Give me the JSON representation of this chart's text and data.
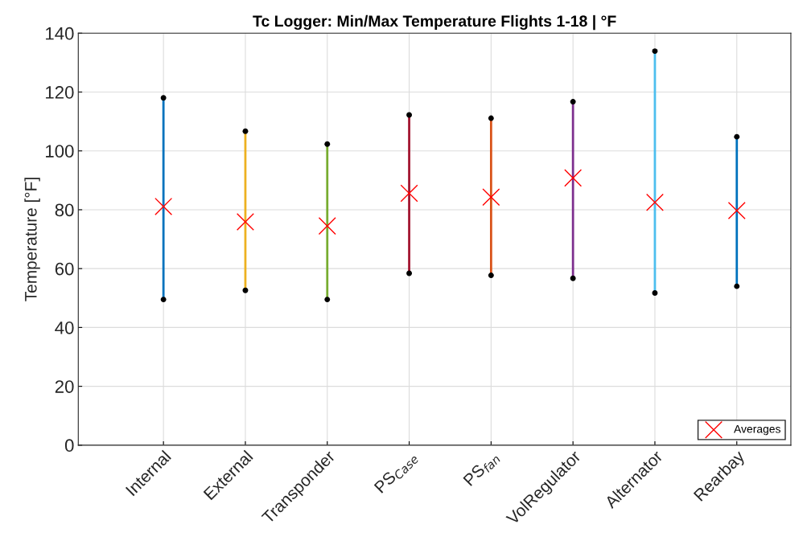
{
  "chart_data": {
    "type": "line",
    "title": "Tc Logger: Min/Max Temperature Flights 1-18 | °F",
    "ylabel": "Temperature [°F]",
    "categories": [
      "Internal",
      "External",
      "Transponder",
      "PS$_{Case}$",
      "PS$_{fan}$",
      "VolRegulator",
      "Alternator",
      "Rearbay"
    ],
    "series": [
      {
        "x": [
          "Internal",
          "Internal"
        ],
        "values": [
          49.5,
          118.0
        ],
        "color": "#0072bd"
      },
      {
        "x": [
          "External",
          "External"
        ],
        "values": [
          52.6,
          106.7
        ],
        "color": "#edb120"
      },
      {
        "x": [
          "Transponder",
          "Transponder"
        ],
        "values": [
          49.5,
          102.3
        ],
        "color": "#77ac30"
      },
      {
        "x": [
          "PS$_{Case}$",
          "PS$_{Case}$"
        ],
        "values": [
          58.4,
          112.2
        ],
        "color": "#a2142f"
      },
      {
        "x": [
          "PS$_{fan}$",
          "PS$_{fan}$"
        ],
        "values": [
          57.7,
          111.1
        ],
        "color": "#d95319"
      },
      {
        "x": [
          "VolRegulator",
          "VolRegulator"
        ],
        "values": [
          56.7,
          116.7
        ],
        "color": "#7e2f8e"
      },
      {
        "x": [
          "Alternator",
          "Alternator"
        ],
        "values": [
          51.7,
          133.9
        ],
        "color": "#4dbeee"
      },
      {
        "x": [
          "Rearbay",
          "Rearbay"
        ],
        "values": [
          54.0,
          104.8
        ],
        "color": "#0072bd"
      },
      {
        "type": "scatter",
        "x": [
          "Internal",
          "External",
          "Transponder",
          "PS$_{Case}$",
          "PS$_{fan}$",
          "VolRegulator",
          "Alternator",
          "Rearbay"
        ],
        "values": [
          49.5,
          52.6,
          49.5,
          58.4,
          57.7,
          56.7,
          51.7,
          54.0
        ],
        "color": "#000000",
        "marker": "circle"
      },
      {
        "type": "scatter",
        "x": [
          "Internal",
          "External",
          "Transponder",
          "PS$_{Case}$",
          "PS$_{fan}$",
          "VolRegulator",
          "Alternator",
          "Rearbay"
        ],
        "values": [
          118.0,
          106.7,
          102.3,
          112.2,
          111.1,
          116.7,
          133.9,
          104.8
        ],
        "color": "#000000",
        "marker": "circle"
      },
      {
        "type": "scatter",
        "name": "Averages",
        "x": [
          "Internal",
          "External",
          "Transponder",
          "PS$_{Case}$",
          "PS$_{fan}$",
          "VolRegulator",
          "Alternator",
          "Rearbay"
        ],
        "values": [
          81.1,
          75.9,
          74.5,
          85.6,
          84.3,
          90.8,
          82.5,
          79.7
        ],
        "color": "#ff0000",
        "marker": "cross"
      }
    ],
    "ylim": [
      0,
      140
    ],
    "yticks": [
      0,
      20,
      40,
      60,
      80,
      100,
      120,
      140
    ],
    "grid": true,
    "legend": "bottom right"
  }
}
